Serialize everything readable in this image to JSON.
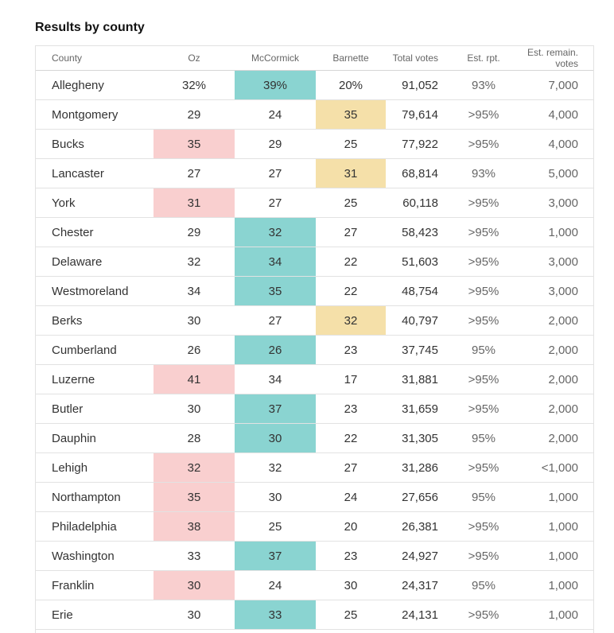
{
  "title": "Results by county",
  "columns": {
    "county": "County",
    "oz": "Oz",
    "mccormick": "McCormick",
    "barnette": "Barnette",
    "total": "Total votes",
    "rpt": "Est. rpt.",
    "remain": "Est. remain. votes"
  },
  "colors": {
    "oz_lead": "#f9cfcf",
    "mccormick_lead": "#8ad4d1",
    "barnette_lead": "#f5e0a9"
  },
  "rows": [
    {
      "county": "Allegheny",
      "oz": "32%",
      "mccormick": "39%",
      "barnette": "20%",
      "total": "91,052",
      "rpt": "93%",
      "remain": "7,000",
      "leader": "mccormick"
    },
    {
      "county": "Montgomery",
      "oz": "29",
      "mccormick": "24",
      "barnette": "35",
      "total": "79,614",
      "rpt": ">95%",
      "remain": "4,000",
      "leader": "barnette"
    },
    {
      "county": "Bucks",
      "oz": "35",
      "mccormick": "29",
      "barnette": "25",
      "total": "77,922",
      "rpt": ">95%",
      "remain": "4,000",
      "leader": "oz"
    },
    {
      "county": "Lancaster",
      "oz": "27",
      "mccormick": "27",
      "barnette": "31",
      "total": "68,814",
      "rpt": "93%",
      "remain": "5,000",
      "leader": "barnette"
    },
    {
      "county": "York",
      "oz": "31",
      "mccormick": "27",
      "barnette": "25",
      "total": "60,118",
      "rpt": ">95%",
      "remain": "3,000",
      "leader": "oz"
    },
    {
      "county": "Chester",
      "oz": "29",
      "mccormick": "32",
      "barnette": "27",
      "total": "58,423",
      "rpt": ">95%",
      "remain": "1,000",
      "leader": "mccormick"
    },
    {
      "county": "Delaware",
      "oz": "32",
      "mccormick": "34",
      "barnette": "22",
      "total": "51,603",
      "rpt": ">95%",
      "remain": "3,000",
      "leader": "mccormick"
    },
    {
      "county": "Westmoreland",
      "oz": "34",
      "mccormick": "35",
      "barnette": "22",
      "total": "48,754",
      "rpt": ">95%",
      "remain": "3,000",
      "leader": "mccormick"
    },
    {
      "county": "Berks",
      "oz": "30",
      "mccormick": "27",
      "barnette": "32",
      "total": "40,797",
      "rpt": ">95%",
      "remain": "2,000",
      "leader": "barnette"
    },
    {
      "county": "Cumberland",
      "oz": "26",
      "mccormick": "26",
      "barnette": "23",
      "total": "37,745",
      "rpt": "95%",
      "remain": "2,000",
      "leader": "mccormick"
    },
    {
      "county": "Luzerne",
      "oz": "41",
      "mccormick": "34",
      "barnette": "17",
      "total": "31,881",
      "rpt": ">95%",
      "remain": "2,000",
      "leader": "oz"
    },
    {
      "county": "Butler",
      "oz": "30",
      "mccormick": "37",
      "barnette": "23",
      "total": "31,659",
      "rpt": ">95%",
      "remain": "2,000",
      "leader": "mccormick"
    },
    {
      "county": "Dauphin",
      "oz": "28",
      "mccormick": "30",
      "barnette": "22",
      "total": "31,305",
      "rpt": "95%",
      "remain": "2,000",
      "leader": "mccormick"
    },
    {
      "county": "Lehigh",
      "oz": "32",
      "mccormick": "32",
      "barnette": "27",
      "total": "31,286",
      "rpt": ">95%",
      "remain": "<1,000",
      "leader": "oz"
    },
    {
      "county": "Northampton",
      "oz": "35",
      "mccormick": "30",
      "barnette": "24",
      "total": "27,656",
      "rpt": "95%",
      "remain": "1,000",
      "leader": "oz"
    },
    {
      "county": "Philadelphia",
      "oz": "38",
      "mccormick": "25",
      "barnette": "20",
      "total": "26,381",
      "rpt": ">95%",
      "remain": "1,000",
      "leader": "oz"
    },
    {
      "county": "Washington",
      "oz": "33",
      "mccormick": "37",
      "barnette": "23",
      "total": "24,927",
      "rpt": ">95%",
      "remain": "1,000",
      "leader": "mccormick"
    },
    {
      "county": "Franklin",
      "oz": "30",
      "mccormick": "24",
      "barnette": "30",
      "total": "24,317",
      "rpt": "95%",
      "remain": "1,000",
      "leader": "oz"
    },
    {
      "county": "Erie",
      "oz": "30",
      "mccormick": "33",
      "barnette": "25",
      "total": "24,131",
      "rpt": ">95%",
      "remain": "1,000",
      "leader": "mccormick"
    }
  ]
}
